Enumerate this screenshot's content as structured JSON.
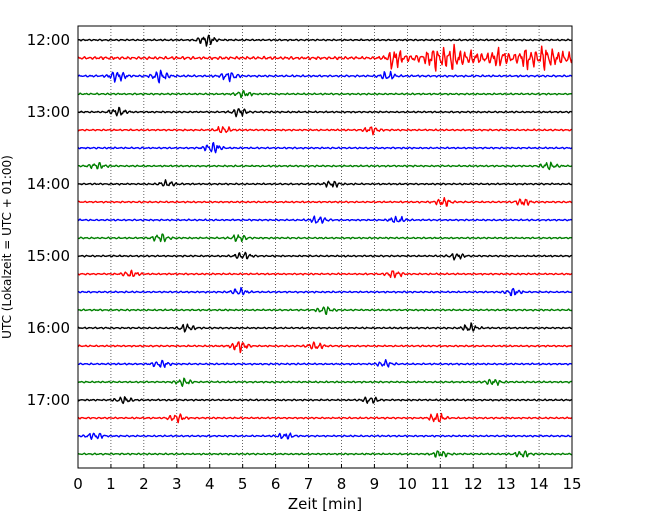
{
  "chart_data": {
    "type": "line",
    "subtype": "helicorder",
    "title": "",
    "xlabel": "Zeit  [min]",
    "ylabel": "UTC (Lokalzeit = UTC + 01:00)",
    "xlim": [
      0,
      15
    ],
    "x_ticks": [
      "0",
      "1",
      "2",
      "3",
      "4",
      "5",
      "6",
      "7",
      "8",
      "9",
      "10",
      "11",
      "12",
      "13",
      "14",
      "15"
    ],
    "y_ticks": [
      "12:00",
      "13:00",
      "14:00",
      "15:00",
      "16:00",
      "17:00"
    ],
    "grid": "vertical dotted lines at each minute",
    "line_colors": [
      "#000000",
      "#ff0000",
      "#0000ff",
      "#008000"
    ],
    "traces": [
      {
        "start": "12:00",
        "color": "#000000",
        "amplitude": 0.5,
        "bursts": [
          [
            3.9,
            0.9
          ]
        ]
      },
      {
        "start": "12:15",
        "color": "#ff0000",
        "amplitude": 0.9,
        "bursts": [
          [
            9.6,
            1.0
          ],
          [
            10.8,
            1.0
          ],
          [
            11.3,
            1.0
          ],
          [
            12.8,
            1.0
          ],
          [
            13.6,
            1.0
          ],
          [
            14.2,
            1.0
          ]
        ]
      },
      {
        "start": "12:30",
        "color": "#0000ff",
        "amplitude": 0.6,
        "bursts": [
          [
            1.2,
            0.8
          ],
          [
            2.5,
            0.8
          ],
          [
            4.6,
            0.7
          ],
          [
            9.4,
            0.6
          ]
        ]
      },
      {
        "start": "12:45",
        "color": "#008000",
        "amplitude": 0.5,
        "bursts": [
          [
            5.0,
            0.5
          ]
        ]
      },
      {
        "start": "13:00",
        "color": "#000000",
        "amplitude": 0.5,
        "bursts": [
          [
            1.2,
            0.6
          ],
          [
            4.9,
            0.6
          ]
        ]
      },
      {
        "start": "13:15",
        "color": "#ff0000",
        "amplitude": 0.5,
        "bursts": [
          [
            4.4,
            0.5
          ],
          [
            8.9,
            0.5
          ]
        ]
      },
      {
        "start": "13:30",
        "color": "#0000ff",
        "amplitude": 0.5,
        "bursts": [
          [
            4.1,
            0.9
          ]
        ]
      },
      {
        "start": "13:45",
        "color": "#008000",
        "amplitude": 0.5,
        "bursts": [
          [
            0.6,
            0.5
          ],
          [
            14.3,
            0.6
          ]
        ]
      },
      {
        "start": "14:00",
        "color": "#000000",
        "amplitude": 0.5,
        "bursts": [
          [
            2.7,
            0.5
          ],
          [
            7.7,
            0.5
          ]
        ]
      },
      {
        "start": "14:15",
        "color": "#ff0000",
        "amplitude": 0.5,
        "bursts": [
          [
            11.1,
            0.6
          ],
          [
            13.5,
            0.5
          ]
        ]
      },
      {
        "start": "14:30",
        "color": "#0000ff",
        "amplitude": 0.5,
        "bursts": [
          [
            7.3,
            0.6
          ],
          [
            9.7,
            0.5
          ]
        ]
      },
      {
        "start": "14:45",
        "color": "#008000",
        "amplitude": 0.5,
        "bursts": [
          [
            2.5,
            0.6
          ],
          [
            4.9,
            0.5
          ]
        ]
      },
      {
        "start": "15:00",
        "color": "#000000",
        "amplitude": 0.5,
        "bursts": [
          [
            5.0,
            0.6
          ],
          [
            11.5,
            0.5
          ]
        ]
      },
      {
        "start": "15:15",
        "color": "#ff0000",
        "amplitude": 0.5,
        "bursts": [
          [
            1.6,
            0.5
          ],
          [
            9.6,
            0.5
          ]
        ]
      },
      {
        "start": "15:30",
        "color": "#0000ff",
        "amplitude": 0.5,
        "bursts": [
          [
            4.9,
            0.5
          ],
          [
            13.2,
            0.5
          ]
        ]
      },
      {
        "start": "15:45",
        "color": "#008000",
        "amplitude": 0.5,
        "bursts": [
          [
            7.5,
            0.5
          ]
        ]
      },
      {
        "start": "16:00",
        "color": "#000000",
        "amplitude": 0.5,
        "bursts": [
          [
            3.3,
            0.5
          ],
          [
            11.9,
            0.6
          ]
        ]
      },
      {
        "start": "16:15",
        "color": "#ff0000",
        "amplitude": 0.5,
        "bursts": [
          [
            4.9,
            0.9
          ],
          [
            7.2,
            0.6
          ]
        ]
      },
      {
        "start": "16:30",
        "color": "#0000ff",
        "amplitude": 0.5,
        "bursts": [
          [
            2.5,
            0.6
          ],
          [
            9.3,
            0.5
          ]
        ]
      },
      {
        "start": "16:45",
        "color": "#008000",
        "amplitude": 0.5,
        "bursts": [
          [
            3.2,
            0.5
          ],
          [
            12.6,
            0.5
          ]
        ]
      },
      {
        "start": "17:00",
        "color": "#000000",
        "amplitude": 0.5,
        "bursts": [
          [
            1.4,
            0.5
          ],
          [
            8.9,
            0.5
          ]
        ]
      },
      {
        "start": "17:15",
        "color": "#ff0000",
        "amplitude": 0.5,
        "bursts": [
          [
            3.0,
            0.7
          ],
          [
            10.9,
            0.7
          ]
        ]
      },
      {
        "start": "17:30",
        "color": "#0000ff",
        "amplitude": 0.5,
        "bursts": [
          [
            0.5,
            0.5
          ],
          [
            6.3,
            0.5
          ]
        ]
      },
      {
        "start": "17:45",
        "color": "#008000",
        "amplitude": 0.5,
        "bursts": [
          [
            11.0,
            0.5
          ],
          [
            13.5,
            0.5
          ]
        ]
      }
    ]
  }
}
